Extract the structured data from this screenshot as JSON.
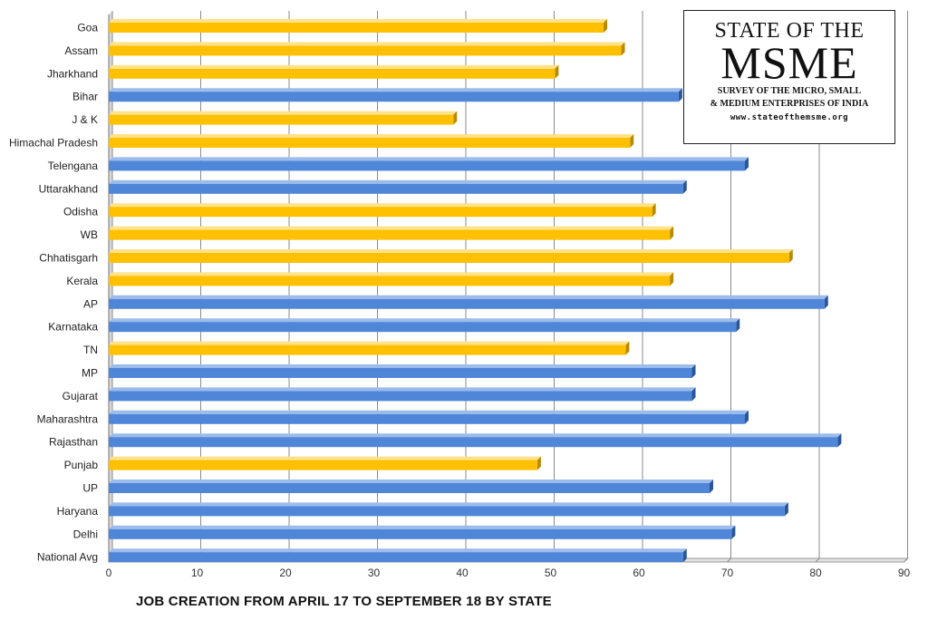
{
  "colors": {
    "blue_face": "#4f86d8",
    "blue_top": "#9cbcec",
    "blue_side": "#2a5598",
    "gold_face": "#ffc000",
    "gold_top": "#ffe28a",
    "gold_side": "#b98a00",
    "grid": "#8a8a8a"
  },
  "logo": {
    "line1": "STATE OF THE",
    "line2": "MSME",
    "line3": "SURVEY OF THE MICRO, SMALL",
    "line4": "& MEDIUM ENTERPRISES OF INDIA",
    "url": "www.stateofthemsme.org"
  },
  "chart_data": {
    "type": "bar",
    "orientation": "horizontal",
    "style": "3d",
    "title": "JOB CREATION FROM APRIL 17 TO SEPTEMBER 18 BY STATE",
    "xlabel": "",
    "ylabel": "",
    "xlim": [
      0,
      90
    ],
    "x_ticks": [
      0,
      10,
      20,
      30,
      40,
      50,
      60,
      70,
      80,
      90
    ],
    "grid": true,
    "legend": "none",
    "categories": [
      "Goa",
      "Assam",
      "Jharkhand",
      "Bihar",
      "J & K",
      "Himachal Pradesh",
      "Telengana",
      "Uttarakhand",
      "Odisha",
      "WB",
      "Chhatisgarh",
      "Kerala",
      "AP",
      "Karnataka",
      "TN",
      "MP",
      "Gujarat",
      "Maharashtra",
      "Rajasthan",
      "Punjab",
      "UP",
      "Haryana",
      "Delhi",
      "National Avg"
    ],
    "values": [
      56,
      58,
      50.5,
      64.5,
      39,
      59,
      72,
      65,
      61.5,
      63.5,
      77,
      63.5,
      81,
      71,
      58.5,
      66,
      66,
      72,
      82.5,
      48.5,
      68,
      76.5,
      70.5,
      65
    ],
    "bar_colors": [
      "gold",
      "gold",
      "gold",
      "blue",
      "gold",
      "gold",
      "blue",
      "blue",
      "gold",
      "gold",
      "gold",
      "gold",
      "blue",
      "blue",
      "gold",
      "blue",
      "blue",
      "blue",
      "blue",
      "gold",
      "blue",
      "blue",
      "blue",
      "blue"
    ]
  }
}
